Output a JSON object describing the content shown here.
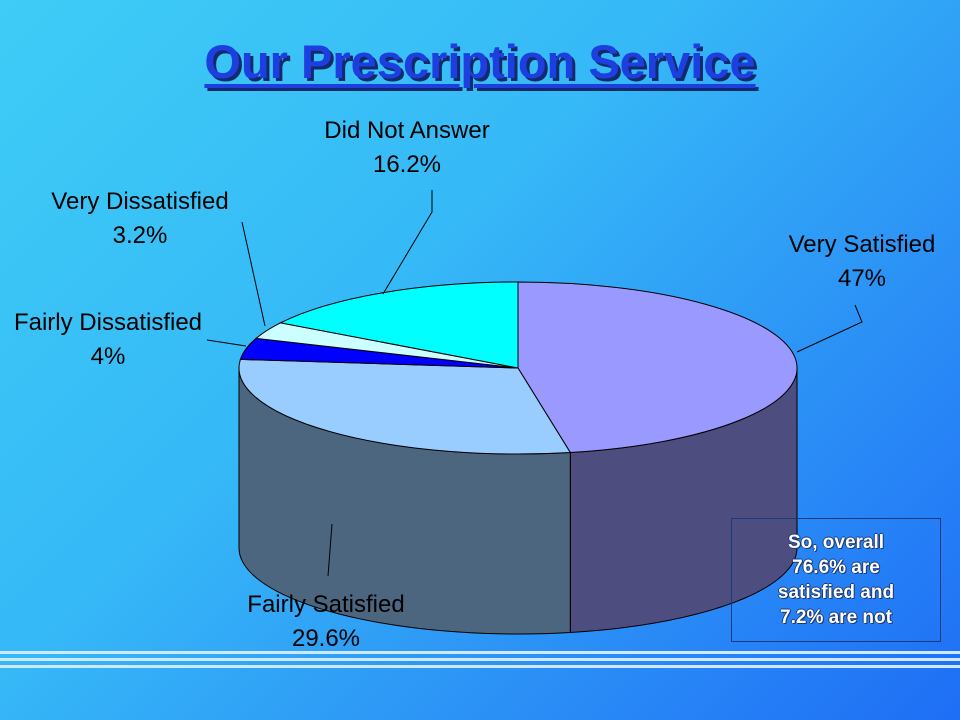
{
  "slide": {
    "title": "Our Prescription Service",
    "summary_lines": [
      "So, overall",
      "76.6% are",
      "satisfied and",
      "7.2% are not"
    ]
  },
  "colors": {
    "very_satisfied": "#9999ff",
    "fairly_satisfied": "#99ccff",
    "fairly_dissatisfied": "#0000ff",
    "very_dissatisfied": "#ccffff",
    "did_not_answer": "#00ffff"
  },
  "chart_data": {
    "type": "pie",
    "title": "",
    "style": "3d",
    "unit": "%",
    "slices": [
      {
        "label": "Very Satisfied",
        "value": 47,
        "value_label": "47%"
      },
      {
        "label": "Fairly Satisfied",
        "value": 29.6,
        "value_label": "29.6%"
      },
      {
        "label": "Fairly Dissatisfied",
        "value": 4,
        "value_label": "4%"
      },
      {
        "label": "Very Dissatisfied",
        "value": 3.2,
        "value_label": "3.2%"
      },
      {
        "label": "Did Not Answer",
        "value": 16.2,
        "value_label": "16.2%"
      }
    ]
  }
}
